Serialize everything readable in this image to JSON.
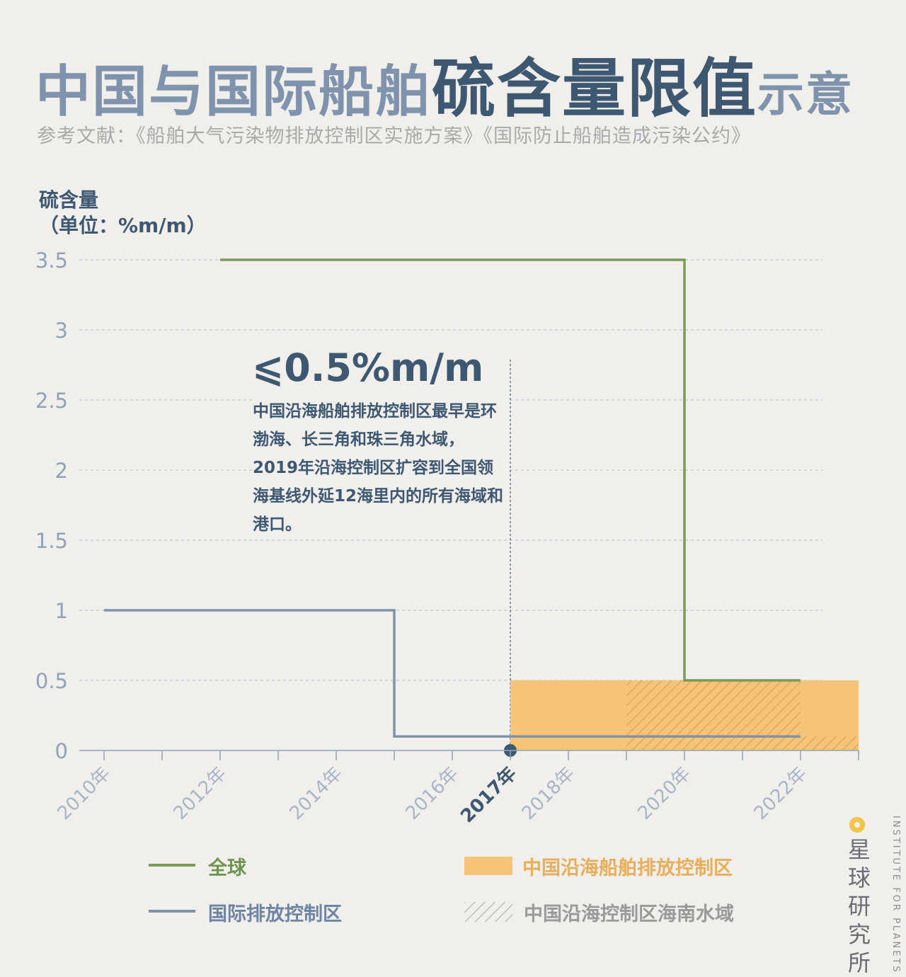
{
  "title": {
    "part1": "中国与国际船舶",
    "part2": "硫含量限值",
    "part3": "示意"
  },
  "reference": "参考文献：《船舶大气污染物排放控制区实施方案》《国际防止船舶造成污染公约》",
  "colors": {
    "global": "#7a9a58",
    "international": "#7f93ad",
    "china_zone": "#f6c477",
    "hatch": "#e0a55a",
    "navy": "#3f5872",
    "grid": "#b9c2d2",
    "tick": "#8fa2b8"
  },
  "callout": {
    "value": "⩽0.5%m/m",
    "text": "中国沿海船舶排放控制区最早是环渤海、长三角和珠三角水域，2019年沿海控制区扩容到全国领海基线外延12海里内的所有海域和港口。"
  },
  "legend": {
    "global": "全球",
    "international": "国际排放控制区",
    "china_coastal": "中国沿海船舶排放控制区",
    "hainan": "中国沿海控制区海南水域"
  },
  "logo": {
    "name": "星球研究所",
    "english": "INSTITUTE FOR PLANETS"
  },
  "chart_data": {
    "type": "line",
    "ylabel": [
      "硫含量",
      "（单位：%m/m）"
    ],
    "ylim": [
      0,
      3.5
    ],
    "yticks": [
      {
        "value": 0,
        "label": "0"
      },
      {
        "value": 0.5,
        "label": "0.5"
      },
      {
        "value": 1,
        "label": "1"
      },
      {
        "value": 1.5,
        "label": "1.5"
      },
      {
        "value": 2,
        "label": "2"
      },
      {
        "value": 2.5,
        "label": "2.5"
      },
      {
        "value": 3,
        "label": "3"
      },
      {
        "value": 3.5,
        "label": "3.5"
      }
    ],
    "xlim": [
      2010,
      2023
    ],
    "xticks": [
      {
        "value": 2010,
        "label": "2010年"
      },
      {
        "value": 2012,
        "label": "2012年"
      },
      {
        "value": 2014,
        "label": "2014年"
      },
      {
        "value": 2016,
        "label": "2016年"
      },
      {
        "value": 2017,
        "label": "2017年",
        "highlight": true
      },
      {
        "value": 2018,
        "label": "2018年"
      },
      {
        "value": 2020,
        "label": "2020年"
      },
      {
        "value": 2022,
        "label": "2022年"
      }
    ],
    "series": [
      {
        "name": "全球",
        "step": true,
        "points": [
          [
            2012,
            3.5
          ],
          [
            2020,
            3.5
          ],
          [
            2020,
            0.5
          ],
          [
            2022,
            0.5
          ]
        ]
      },
      {
        "name": "国际排放控制区",
        "step": true,
        "points": [
          [
            2010,
            1.0
          ],
          [
            2015,
            1.0
          ],
          [
            2015,
            0.1
          ],
          [
            2022,
            0.1
          ]
        ]
      }
    ],
    "areas": [
      {
        "name": "中国沿海船舶排放控制区",
        "x": [
          2017,
          2023
        ],
        "y": [
          0,
          0.5
        ]
      },
      {
        "name": "中国沿海控制区海南水域",
        "x": [
          2019,
          2022
        ],
        "y": [
          0,
          0.5
        ],
        "pattern": "hatch"
      },
      {
        "name": "中国沿海控制区海南水域",
        "x": [
          2022,
          2023
        ],
        "y": [
          0,
          0.1
        ],
        "pattern": "hatch"
      }
    ],
    "marker": {
      "x": 2017,
      "y": 0
    },
    "grid": "horizontal dashed"
  }
}
